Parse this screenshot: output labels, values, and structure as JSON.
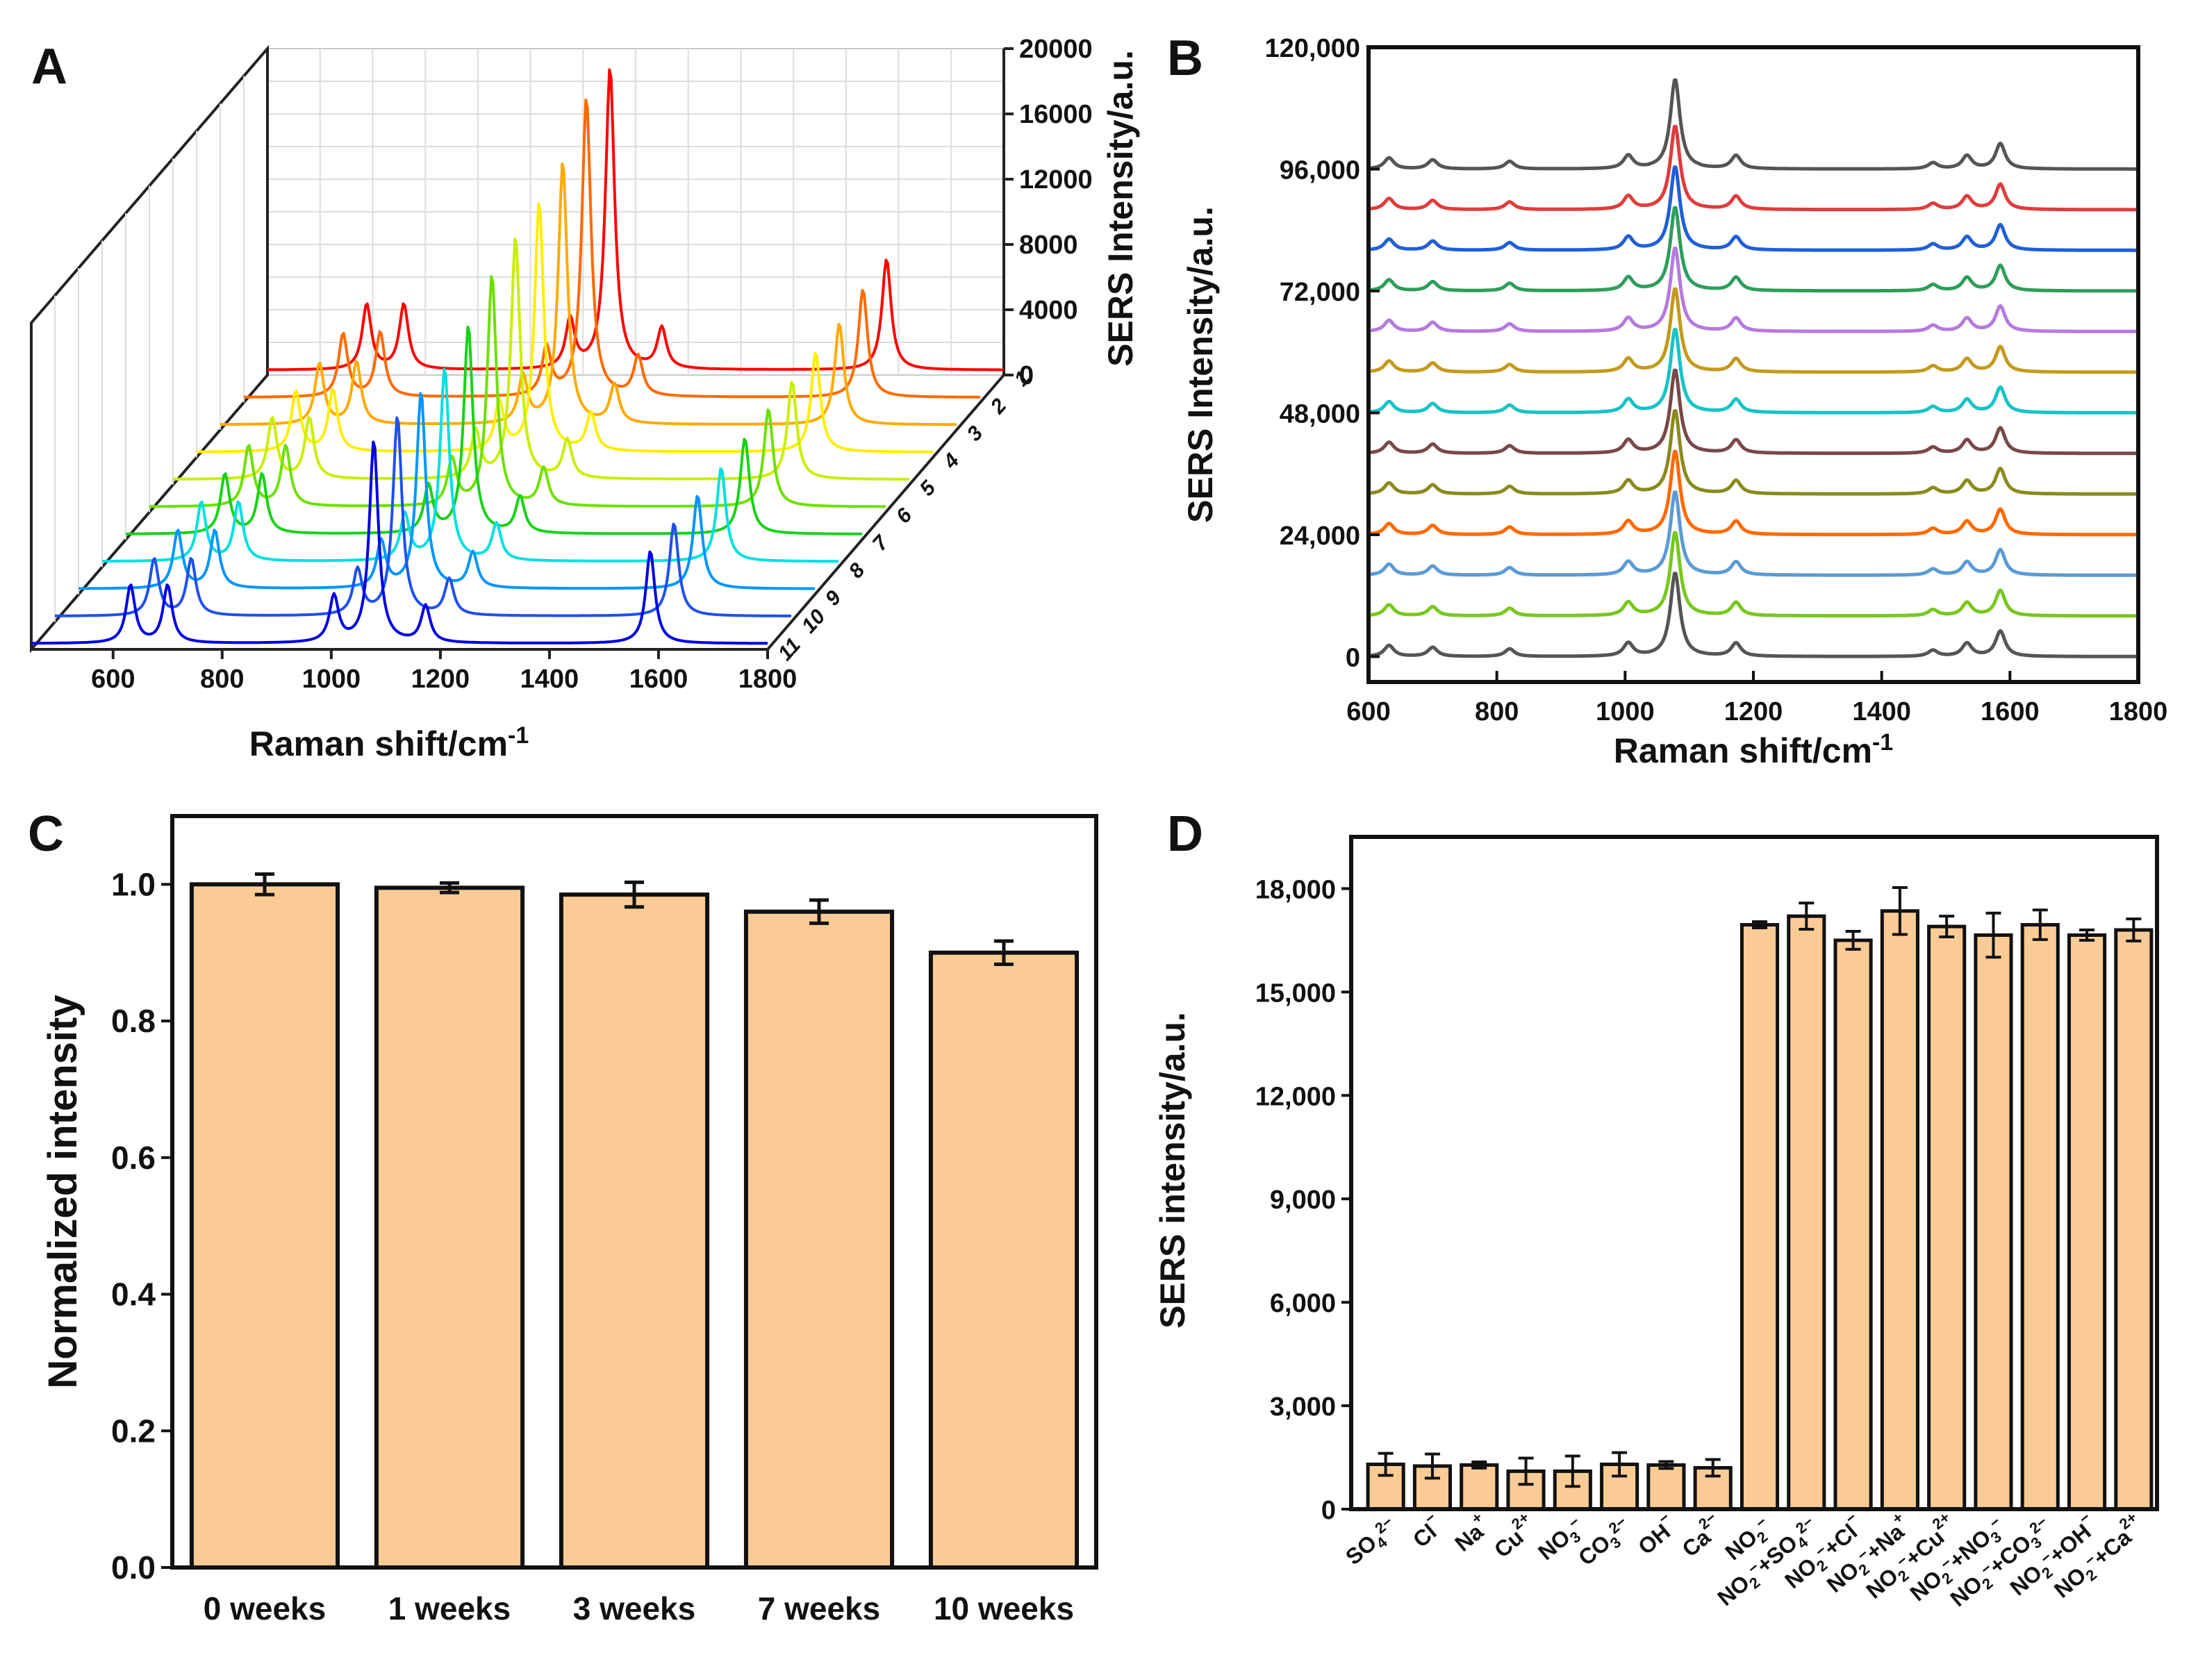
{
  "panels": {
    "A": {
      "label": "A",
      "xlabel": "Raman shift/cm",
      "xlabel_sup": "-1",
      "ylabel": "SERS Intensity/a.u.",
      "xticks": [
        "600",
        "800",
        "1000",
        "1200",
        "1400",
        "1600",
        "1800"
      ],
      "zticks": [
        "20000",
        "16000",
        "12000",
        "8000",
        "4000",
        "0"
      ],
      "depth_labels": [
        "1",
        "2",
        "3",
        "4",
        "5",
        "6",
        "7",
        "8",
        "9",
        "10",
        "11"
      ]
    },
    "B": {
      "label": "B",
      "xlabel": "Raman shift/cm",
      "xlabel_sup": "-1",
      "ylabel": "SERS Intensity/a.u.",
      "xticks": [
        "600",
        "800",
        "1000",
        "1200",
        "1400",
        "1600",
        "1800"
      ],
      "yticks": [
        "120,000",
        "96,000",
        "72,000",
        "48,000",
        "24,000",
        "0"
      ]
    },
    "C": {
      "label": "C",
      "ylabel": "Normalized intensity",
      "yticks": [
        "1.0",
        "0.8",
        "0.6",
        "0.4",
        "0.2",
        "0.0"
      ]
    },
    "D": {
      "label": "D",
      "ylabel": "SERS intensity/a.u.",
      "yticks": [
        "18,000",
        "15,000",
        "12,000",
        "9,000",
        "6,000",
        "3,000",
        "0"
      ]
    }
  },
  "colors": {
    "bar_fill": "#FBCB96",
    "series_A": [
      "#FF0000",
      "#FF6A00",
      "#FFAA00",
      "#FFEE00",
      "#C8F000",
      "#6EE000",
      "#18D218",
      "#00E0E0",
      "#0096FF",
      "#1E50F0",
      "#0000E6"
    ],
    "series_B": [
      "#555555",
      "#E03C3C",
      "#1F5FD8",
      "#2E9E5A",
      "#B57ADF",
      "#C49A1C",
      "#19C3C8",
      "#7A4848",
      "#8A8A1E",
      "#FF6A00",
      "#5B9BD5",
      "#78C81E",
      "#555555"
    ]
  },
  "chart_data": [
    {
      "type": "line",
      "panel": "A",
      "title": "",
      "xlabel": "Raman shift/cm-1",
      "ylabel": "SERS Intensity/a.u.",
      "xlim": [
        450,
        1800
      ],
      "zlim": [
        0,
        20000
      ],
      "projection": "3d-waterfall",
      "series": [
        {
          "name": "1",
          "peaks": [
            [
              632,
              4000
            ],
            [
              700,
              4000
            ],
            [
              1005,
              3000
            ],
            [
              1078,
              18500
            ],
            [
              1173,
              2500
            ],
            [
              1585,
              6800
            ]
          ]
        },
        {
          "name": "2",
          "peaks": [
            [
              632,
              3800
            ],
            [
              700,
              3900
            ],
            [
              1005,
              2900
            ],
            [
              1078,
              18000
            ],
            [
              1173,
              2400
            ],
            [
              1585,
              6500
            ]
          ]
        },
        {
          "name": "3",
          "peaks": [
            [
              632,
              3600
            ],
            [
              700,
              3700
            ],
            [
              1005,
              2800
            ],
            [
              1078,
              15500
            ],
            [
              1173,
              2300
            ],
            [
              1585,
              6000
            ]
          ]
        },
        {
          "name": "4",
          "peaks": [
            [
              632,
              3500
            ],
            [
              700,
              3600
            ],
            [
              1005,
              2800
            ],
            [
              1078,
              14500
            ],
            [
              1173,
              2200
            ],
            [
              1585,
              5800
            ]
          ]
        },
        {
          "name": "5",
          "peaks": [
            [
              632,
              3500
            ],
            [
              700,
              3500
            ],
            [
              1005,
              2700
            ],
            [
              1078,
              13800
            ],
            [
              1173,
              2200
            ],
            [
              1585,
              5600
            ]
          ]
        },
        {
          "name": "6",
          "peaks": [
            [
              632,
              3400
            ],
            [
              700,
              3400
            ],
            [
              1005,
              2600
            ],
            [
              1078,
              13000
            ],
            [
              1173,
              2100
            ],
            [
              1585,
              5500
            ]
          ]
        },
        {
          "name": "7",
          "peaks": [
            [
              632,
              3300
            ],
            [
              700,
              3300
            ],
            [
              1005,
              2600
            ],
            [
              1078,
              11500
            ],
            [
              1173,
              2000
            ],
            [
              1585,
              5300
            ]
          ]
        },
        {
          "name": "8",
          "peaks": [
            [
              632,
              3200
            ],
            [
              700,
              3200
            ],
            [
              1005,
              2500
            ],
            [
              1078,
              10500
            ],
            [
              1173,
              2000
            ],
            [
              1585,
              5100
            ]
          ]
        },
        {
          "name": "9",
          "peaks": [
            [
              632,
              3100
            ],
            [
              700,
              3100
            ],
            [
              1005,
              2500
            ],
            [
              1078,
              10500
            ],
            [
              1173,
              1900
            ],
            [
              1585,
              5000
            ]
          ]
        },
        {
          "name": "10",
          "peaks": [
            [
              632,
              3000
            ],
            [
              700,
              3000
            ],
            [
              1005,
              2400
            ],
            [
              1078,
              10500
            ],
            [
              1173,
              1900
            ],
            [
              1585,
              4900
            ]
          ]
        },
        {
          "name": "11",
          "peaks": [
            [
              632,
              3000
            ],
            [
              700,
              3000
            ],
            [
              1005,
              2400
            ],
            [
              1078,
              10500
            ],
            [
              1173,
              1900
            ],
            [
              1585,
              4800
            ]
          ]
        }
      ]
    },
    {
      "type": "line",
      "panel": "B",
      "title": "",
      "xlabel": "Raman shift/cm-1",
      "ylabel": "SERS Intensity/a.u.",
      "xlim": [
        600,
        1800
      ],
      "ylim": [
        -5000,
        120000
      ],
      "offsets": [
        96000,
        88000,
        80000,
        72000,
        64000,
        56000,
        48000,
        40000,
        32000,
        24000,
        16000,
        8000,
        0
      ],
      "peaks": [
        [
          632,
          2200
        ],
        [
          700,
          1800
        ],
        [
          820,
          1500
        ],
        [
          1005,
          2600
        ],
        [
          1078,
          16500
        ],
        [
          1173,
          2600
        ],
        [
          1480,
          1200
        ],
        [
          1533,
          2600
        ],
        [
          1585,
          5000
        ]
      ]
    },
    {
      "type": "bar",
      "panel": "C",
      "title": "",
      "xlabel": "",
      "ylabel": "Normalized intensity",
      "ylim": [
        0,
        1.1
      ],
      "categories": [
        "0 weeks",
        "1 weeks",
        "3 weeks",
        "7 weeks",
        "10 weeks"
      ],
      "values": [
        1.0,
        0.995,
        0.985,
        0.96,
        0.9
      ],
      "errors": [
        0.015,
        0.007,
        0.018,
        0.017,
        0.017
      ]
    },
    {
      "type": "bar",
      "panel": "D",
      "title": "",
      "xlabel": "",
      "ylabel": "SERS intensity/a.u.",
      "ylim": [
        0,
        19500
      ],
      "categories": [
        {
          "base": "SO",
          "sub": "4",
          "sup": "2−"
        },
        {
          "base": "Cl",
          "sub": "",
          "sup": "−"
        },
        {
          "base": "Na",
          "sub": "",
          "sup": "+"
        },
        {
          "base": "Cu",
          "sub": "",
          "sup": "2+"
        },
        {
          "base": "NO",
          "sub": "3",
          "sup": "−"
        },
        {
          "base": "CO",
          "sub": "3",
          "sup": "2−"
        },
        {
          "base": "OH",
          "sub": "",
          "sup": "−"
        },
        {
          "base": "Ca",
          "sub": "",
          "sup": "2−"
        },
        {
          "base": "NO",
          "sub": "2",
          "sup": "−"
        },
        {
          "base": "NO",
          "sub": "2",
          "sup": "−",
          "extra": "+SO",
          "extra_sub": "4",
          "extra_sup": "2−"
        },
        {
          "base": "NO",
          "sub": "2",
          "sup": "−",
          "extra": "+Cl",
          "extra_sub": "",
          "extra_sup": "−"
        },
        {
          "base": "NO",
          "sub": "2",
          "sup": "−",
          "extra": "+Na",
          "extra_sub": "",
          "extra_sup": "+"
        },
        {
          "base": "NO",
          "sub": "2",
          "sup": "−",
          "extra": "+Cu",
          "extra_sub": "",
          "extra_sup": "2+"
        },
        {
          "base": "NO",
          "sub": "2",
          "sup": "−",
          "extra": "+NO",
          "extra_sub": "3",
          "extra_sup": "−"
        },
        {
          "base": "NO",
          "sub": "2",
          "sup": "−",
          "extra": "+CO",
          "extra_sub": "3",
          "extra_sup": "2−"
        },
        {
          "base": "NO",
          "sub": "2",
          "sup": "−",
          "extra": "+OH",
          "extra_sub": "",
          "extra_sup": "−"
        },
        {
          "base": "NO",
          "sub": "2",
          "sup": "−",
          "extra": "+Ca",
          "extra_sub": "",
          "extra_sup": "2+"
        }
      ],
      "values": [
        1300,
        1250,
        1280,
        1100,
        1100,
        1300,
        1280,
        1200,
        16950,
        17200,
        16500,
        17350,
        16900,
        16650,
        16950,
        16650,
        16800
      ],
      "errors": [
        320,
        350,
        90,
        380,
        440,
        340,
        100,
        240,
        90,
        380,
        260,
        680,
        300,
        640,
        430,
        150,
        320
      ]
    }
  ]
}
